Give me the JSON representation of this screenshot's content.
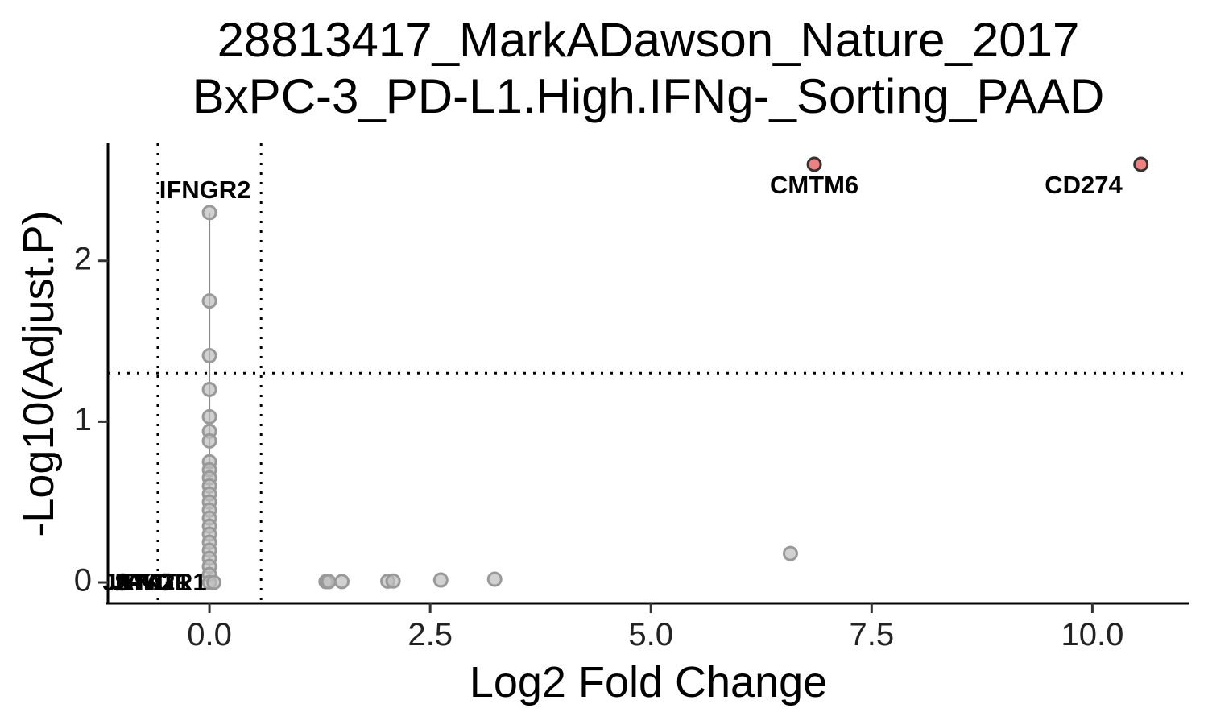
{
  "chart_data": {
    "type": "scatter",
    "title_lines": [
      "28813417_MarkADawson_Nature_2017",
      "BxPC-3_PD-L1.High.IFNg-_Sorting_PAAD"
    ],
    "xlabel": "Log2 Fold Change",
    "ylabel": "-Log10(Adjust.P)",
    "xlim": [
      -1.15,
      11.1
    ],
    "ylim": [
      -0.13,
      2.73
    ],
    "x_ticks": [
      {
        "value": 0,
        "label": "0.0"
      },
      {
        "value": 2.5,
        "label": "2.5"
      },
      {
        "value": 5,
        "label": "5.0"
      },
      {
        "value": 7.5,
        "label": "7.5"
      },
      {
        "value": 10,
        "label": "10.0"
      }
    ],
    "y_ticks": [
      {
        "value": 0,
        "label": "0"
      },
      {
        "value": 1,
        "label": "1"
      },
      {
        "value": 2,
        "label": "2"
      }
    ],
    "thresholds": {
      "x": [
        -0.585,
        0.585
      ],
      "y": 1.301
    },
    "colors": {
      "significant": "#F08080",
      "nonsignificant": "#BEBEBE",
      "outline_sig": "#333333",
      "outline_ns": "#999999",
      "connector": "#888888"
    },
    "points": [
      {
        "x": 0.0,
        "y": 2.3,
        "sig": false
      },
      {
        "x": 0.0,
        "y": 1.75,
        "sig": false
      },
      {
        "x": 0.0,
        "y": 1.41,
        "sig": false
      },
      {
        "x": 0.0,
        "y": 1.2,
        "sig": false
      },
      {
        "x": 0.0,
        "y": 1.03,
        "sig": false
      },
      {
        "x": 0.0,
        "y": 0.94,
        "sig": false
      },
      {
        "x": 0.0,
        "y": 0.88,
        "sig": false
      },
      {
        "x": 0.0,
        "y": 0.75,
        "sig": false
      },
      {
        "x": 0.0,
        "y": 0.7,
        "sig": false
      },
      {
        "x": 0.0,
        "y": 0.65,
        "sig": false
      },
      {
        "x": 0.0,
        "y": 0.6,
        "sig": false
      },
      {
        "x": 0.0,
        "y": 0.55,
        "sig": false
      },
      {
        "x": 0.0,
        "y": 0.5,
        "sig": false
      },
      {
        "x": 0.0,
        "y": 0.45,
        "sig": false
      },
      {
        "x": 0.0,
        "y": 0.4,
        "sig": false
      },
      {
        "x": 0.0,
        "y": 0.35,
        "sig": false
      },
      {
        "x": 0.0,
        "y": 0.3,
        "sig": false
      },
      {
        "x": 0.0,
        "y": 0.25,
        "sig": false
      },
      {
        "x": 0.0,
        "y": 0.2,
        "sig": false
      },
      {
        "x": 0.0,
        "y": 0.15,
        "sig": false
      },
      {
        "x": 0.0,
        "y": 0.1,
        "sig": false
      },
      {
        "x": 0.0,
        "y": 0.05,
        "sig": false
      },
      {
        "x": 0.0,
        "y": 0.0,
        "sig": false
      },
      {
        "x": 0.05,
        "y": 0.0,
        "sig": false
      },
      {
        "x": 1.32,
        "y": 0.005,
        "sig": false
      },
      {
        "x": 1.35,
        "y": 0.005,
        "sig": false
      },
      {
        "x": 1.5,
        "y": 0.006,
        "sig": false
      },
      {
        "x": 2.02,
        "y": 0.008,
        "sig": false
      },
      {
        "x": 2.08,
        "y": 0.009,
        "sig": false
      },
      {
        "x": 2.62,
        "y": 0.015,
        "sig": false
      },
      {
        "x": 3.23,
        "y": 0.02,
        "sig": false
      },
      {
        "x": 6.58,
        "y": 0.18,
        "sig": false
      },
      {
        "x": 6.85,
        "y": 2.6,
        "sig": true
      },
      {
        "x": 10.55,
        "y": 2.6,
        "sig": true
      }
    ],
    "labels": [
      {
        "text": "IFNGR2",
        "x": -0.05,
        "y": 2.43
      },
      {
        "text": "CMTM6",
        "x": 6.85,
        "y": 2.46
      },
      {
        "text": "CD274",
        "x": 9.9,
        "y": 2.46
      },
      {
        "text": "JAK2",
        "x": -0.75,
        "y": -0.01
      },
      {
        "text": "STAT1",
        "x": -0.65,
        "y": -0.01
      },
      {
        "text": "IFNGR1",
        "x": -0.55,
        "y": -0.01
      },
      {
        "text": "JAK1",
        "x": -0.85,
        "y": -0.01
      }
    ]
  }
}
